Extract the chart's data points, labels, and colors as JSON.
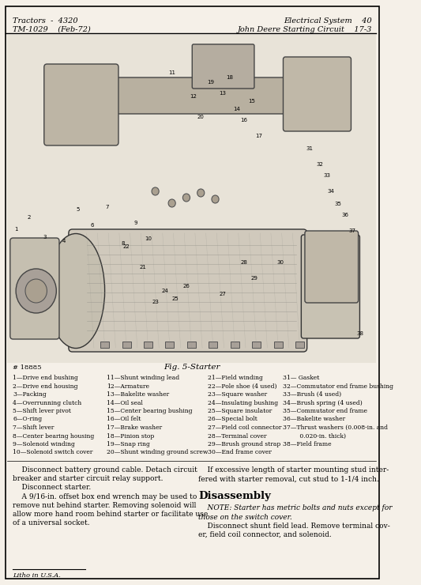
{
  "page_bg": "#f5f0e8",
  "border_color": "#000000",
  "figsize": [
    5.33,
    7.4
  ],
  "dpi": 100,
  "header": {
    "left_line1": "Tractors  -  4320",
    "left_line2": "TM-1029    (Feb-72)",
    "right_line1": "Electrical System    40",
    "right_line2": "John Deere Starting Circuit    17-3"
  },
  "fig_caption": "Fig. 5-Starter",
  "image_number": "# 18885",
  "parts_list_col1": [
    "1—Drive end bushing",
    "2—Drive end housing",
    "3—Packing",
    "4—Overrunning clutch",
    "5—Shift lever pivot",
    "6—O-ring",
    "7—Shift lever",
    "8—Center bearing housing",
    "9—Solenoid winding",
    "10—Solenoid switch cover"
  ],
  "parts_list_col2": [
    "11—Shunt winding lead",
    "12—Armature",
    "13—Bakelite washer",
    "14—Oil seal",
    "15—Center bearing bushing",
    "16—Oil felt",
    "17—Brake washer",
    "18—Pinion stop",
    "19—Snap ring",
    "20—Shunt winding ground screw"
  ],
  "parts_list_col3": [
    "21—Field winding",
    "22—Pole shoe (4 used)",
    "23—Square washer",
    "24—Insulating bushing",
    "25—Square insulator",
    "26—Special bolt",
    "27—Field coil connector",
    "28—Terminal cover",
    "29—Brush ground strap",
    "30—End frame cover"
  ],
  "parts_list_col4": [
    "31— Gasket",
    "32—Commutator end frame bushing",
    "33—Brush (4 used)",
    "34—Brush spring (4 used)",
    "35—Commutator end frame",
    "36—Bakelite washer",
    "37—Thrust washers (0.008-in. and",
    "         0.020-in. thick)",
    "38—Field frame"
  ],
  "body_left": [
    "    Disconnect battery ground cable. Detach circuit",
    "breaker and starter circuit relay support.",
    "    Disconnect starter.",
    "    A 9/16-in. offset box end wrench may be used to",
    "remove nut behind starter. Removing solenoid will",
    "allow more hand room behind starter or facilitate use",
    "of a universal socket."
  ],
  "body_right_top": [
    "    If excessive length of starter mounting stud inter-",
    "fered with starter removal, cut stud to 1-1/4 inch."
  ],
  "disassembly_title": "Disassembly",
  "disassembly_note": [
    "    NOTE: Starter has metric bolts and nuts except for",
    "those on the switch cover.",
    "    Disconnect shunt field lead. Remove terminal cov-",
    "er, field coil connector, and solenoid."
  ],
  "footer": "Litho in U.S.A.",
  "diagram_bg": "#e8e3d8",
  "part_color1": "#d0c9bc",
  "part_color2": "#c5bfb0",
  "part_color3": "#c8c2b3",
  "part_color4": "#b8b0a0",
  "part_color5": "#c0b8a8",
  "part_color6": "#bdb5a5",
  "part_color7": "#b5ada0",
  "part_color8": "#aaa090",
  "part_color9": "#a8a098"
}
